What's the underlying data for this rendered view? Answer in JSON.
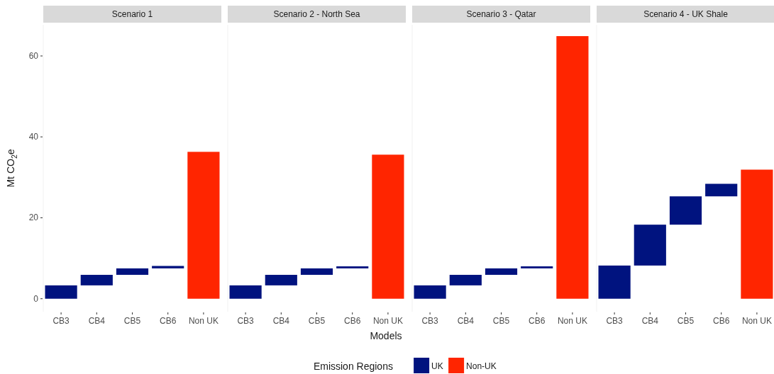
{
  "chart_data": [
    {
      "type": "bar",
      "title": "Scenario 1",
      "ylabel": "Mt CO$_{2}$e",
      "legend_title": "Emission Regions",
      "legend": "bottom",
      "grid": false,
      "categories": [
        "CB3",
        "CB4",
        "CB5",
        "CB6",
        "Non UK"
      ],
      "series": [
        {
          "name": "UK",
          "color": "#00137f",
          "values": [
            3.3,
            2.6,
            1.6,
            0.6,
            null
          ],
          "base": [
            0,
            3.3,
            5.9,
            7.5,
            null
          ]
        },
        {
          "name": "Non-UK",
          "color": "#ff2500",
          "values": [
            null,
            null,
            null,
            null,
            36.3
          ],
          "base": [
            null,
            null,
            null,
            null,
            0
          ]
        }
      ],
      "ylim": [
        -3.2,
        67.7
      ],
      "yticks": [
        0,
        20,
        40,
        60
      ]
    },
    {
      "type": "bar",
      "title": "Scenario 2 - North Sea",
      "xlabel": "Models",
      "grid": false,
      "tick_labels": "x",
      "categories": [
        "CB3",
        "CB4",
        "CB5",
        "CB6",
        "Non UK"
      ],
      "series": [
        {
          "name": "UK",
          "color": "#00137f",
          "values": [
            3.3,
            2.6,
            1.6,
            0.5,
            null
          ],
          "base": [
            0,
            3.3,
            5.9,
            7.5,
            null
          ]
        },
        {
          "name": "Non-UK",
          "color": "#ff2500",
          "values": [
            null,
            null,
            null,
            null,
            35.6
          ],
          "base": [
            null,
            null,
            null,
            null,
            0
          ]
        }
      ],
      "ylim": [
        -3.2,
        67.7
      ]
    },
    {
      "type": "bar",
      "title": "Scenario 3 - Qatar",
      "grid": false,
      "tick_labels": "x",
      "categories": [
        "CB3",
        "CB4",
        "CB5",
        "CB6",
        "Non UK"
      ],
      "series": [
        {
          "name": "UK",
          "color": "#00137f",
          "values": [
            3.3,
            2.6,
            1.6,
            0.5,
            null
          ],
          "base": [
            0,
            3.3,
            5.9,
            7.5,
            null
          ]
        },
        {
          "name": "Non-UK",
          "color": "#ff2500",
          "values": [
            null,
            null,
            null,
            null,
            64.9
          ],
          "base": [
            null,
            null,
            null,
            null,
            0
          ]
        }
      ],
      "ylim": [
        -3.2,
        67.7
      ]
    },
    {
      "type": "bar",
      "title": "Scenario 4 - UK Shale",
      "grid": false,
      "tick_labels": "x",
      "categories": [
        "CB3",
        "CB4",
        "CB5",
        "CB6",
        "Non UK"
      ],
      "series": [
        {
          "name": "UK",
          "color": "#00137f",
          "values": [
            8.2,
            10.1,
            7.0,
            3.1,
            null
          ],
          "base": [
            0,
            8.2,
            18.3,
            25.3,
            null
          ]
        },
        {
          "name": "Non-UK",
          "color": "#ff2500",
          "values": [
            null,
            null,
            null,
            null,
            31.9
          ],
          "base": [
            null,
            null,
            null,
            null,
            0
          ]
        }
      ],
      "ylim": [
        -3.2,
        67.7
      ]
    }
  ]
}
